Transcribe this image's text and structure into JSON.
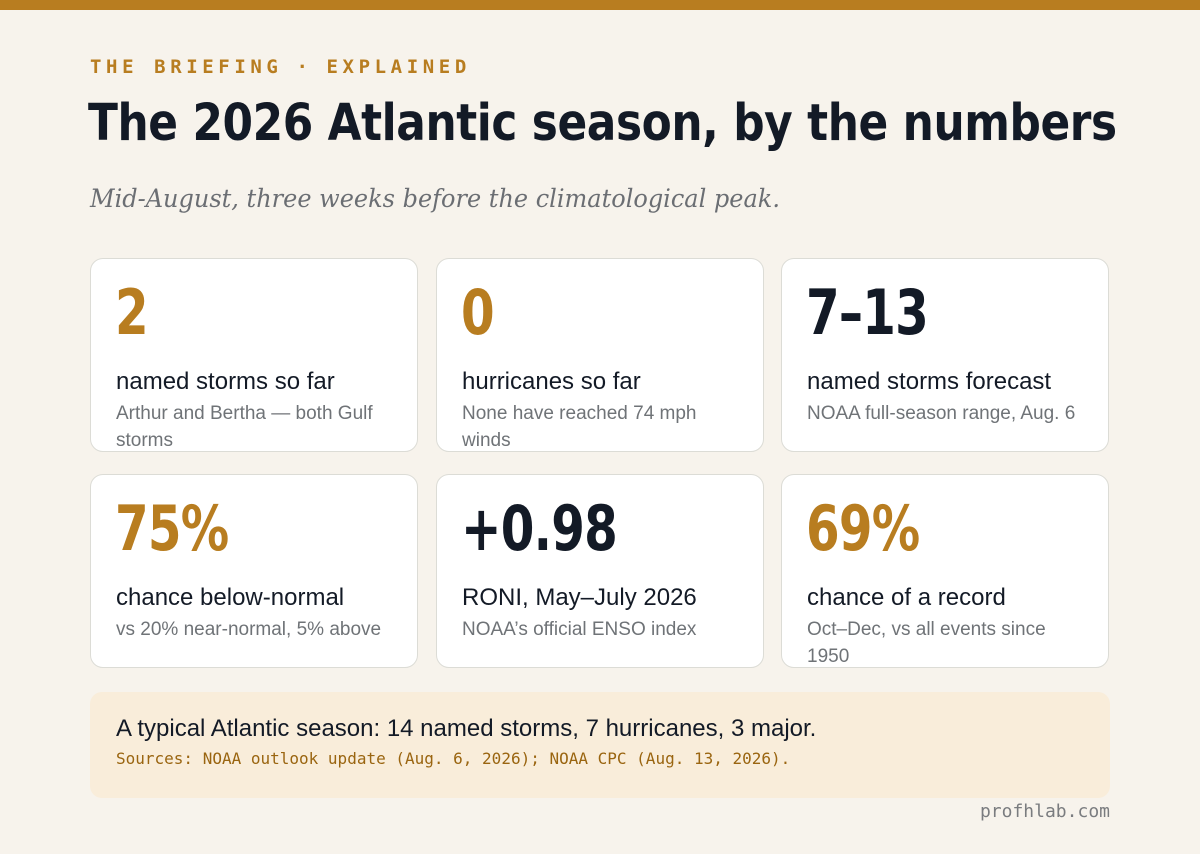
{
  "header": {
    "kicker_left": "THE BRIEFING",
    "kicker_separator": "·",
    "kicker_right": "EXPLAINED",
    "title": "The 2026 Atlantic season, by the numbers",
    "subtitle": "Mid-August, three weeks before the climatological peak."
  },
  "cards": [
    {
      "stat": "2",
      "label": "named storms so far",
      "note": "Arthur and Bertha — both Gulf storms",
      "accent": "gold"
    },
    {
      "stat": "0",
      "label": "hurricanes so far",
      "note": "None have reached 74 mph winds",
      "accent": "gold"
    },
    {
      "stat": "7–13",
      "label": "named storms forecast",
      "note": "NOAA full-season range, Aug. 6",
      "accent": "dark"
    },
    {
      "stat": "75%",
      "label": "chance below-normal",
      "note": "vs 20% near-normal, 5% above",
      "accent": "gold"
    },
    {
      "stat": "+0.98",
      "label": "RONI, May–July 2026",
      "note": "NOAA’s official ENSO index",
      "accent": "dark"
    },
    {
      "stat": "69%",
      "label": "chance of a record",
      "note": "Oct–Dec, vs all events since 1950",
      "accent": "gold"
    }
  ],
  "callout": {
    "headline": "A typical Atlantic season: 14 named storms, 7 hurricanes, 3 major.",
    "sources": "Sources: NOAA outlook update (Aug. 6, 2026); NOAA CPC (Aug. 13, 2026)."
  },
  "footer": {
    "site": "profhlab.com"
  },
  "colors": {
    "accent_gold": "#b87d20",
    "ink": "#131a26",
    "background": "#f7f3ec",
    "callout_background": "#f9edda"
  }
}
